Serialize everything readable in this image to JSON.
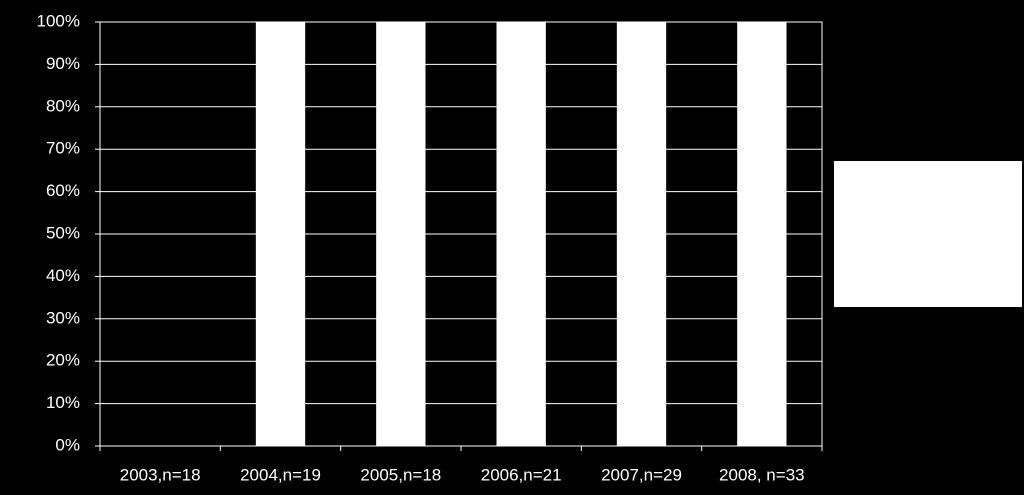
{
  "chart_data": {
    "type": "bar",
    "categories": [
      "2003,n=18",
      "2004,n=19",
      "2005,n=18",
      "2006,n=21",
      "2007,n=29",
      "2008, n=33"
    ],
    "values": [
      0,
      100,
      100,
      100,
      100,
      100
    ],
    "color": "#ffffff",
    "ylim": [
      0,
      100
    ],
    "yticks": [
      {
        "value": 0,
        "label": "0%"
      },
      {
        "value": 10,
        "label": "10%"
      },
      {
        "value": 20,
        "label": "20%"
      },
      {
        "value": 30,
        "label": "30%"
      },
      {
        "value": 40,
        "label": "40%"
      },
      {
        "value": 50,
        "label": "50%"
      },
      {
        "value": 60,
        "label": "60%"
      },
      {
        "value": 70,
        "label": "70%"
      },
      {
        "value": 80,
        "label": "80%"
      },
      {
        "value": 90,
        "label": "90%"
      },
      {
        "value": 100,
        "label": "100%"
      }
    ],
    "grid": true
  }
}
